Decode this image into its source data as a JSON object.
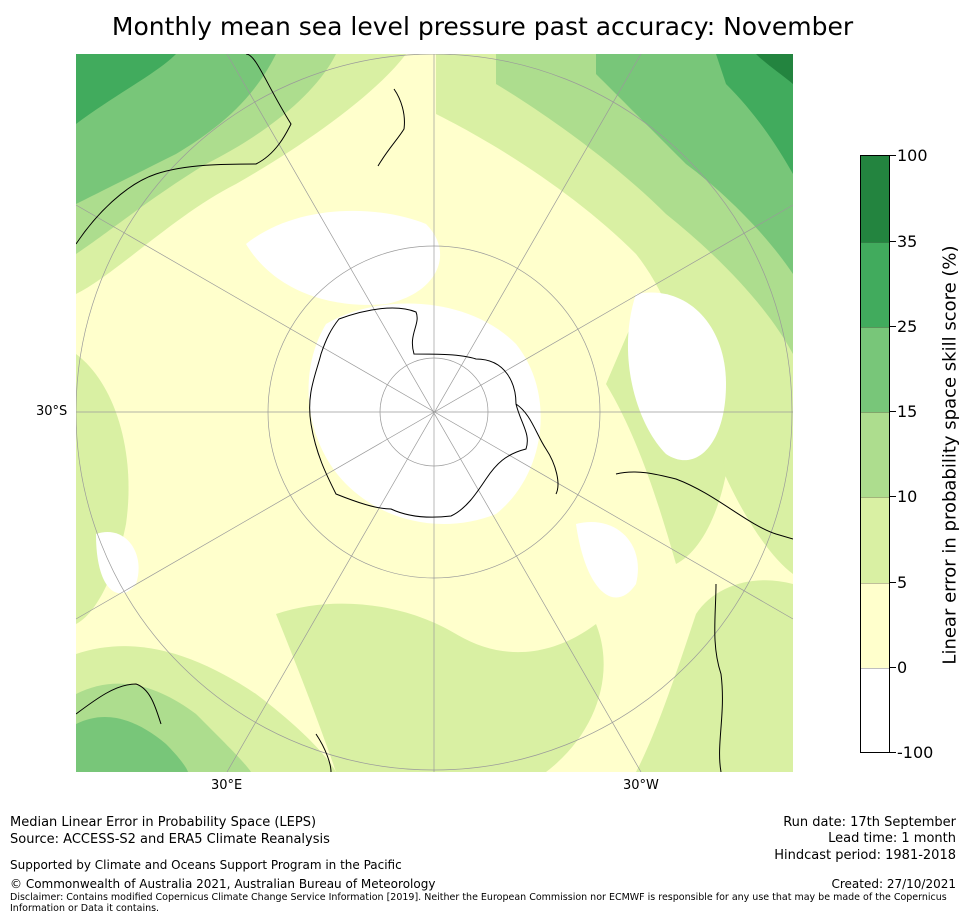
{
  "title": "Monthly mean sea level pressure past accuracy: November",
  "map": {
    "lat_label": "30°S",
    "lon_labels": [
      "30°E",
      "30°W"
    ],
    "colors": {
      "land_border": "#000000",
      "grid": "#9a9a9a"
    }
  },
  "colorbar": {
    "title": "Linear error in probability space skill score (%)",
    "ticks": [
      "100",
      "35",
      "25",
      "15",
      "10",
      "5",
      "0",
      "-100"
    ],
    "colors": [
      "#23843f",
      "#41ab5d",
      "#78c679",
      "#addd8e",
      "#d9f0a3",
      "#ffffcc",
      "#ffffff"
    ]
  },
  "footer": {
    "left_line1": "Median Linear Error in Probability Space (LEPS)",
    "left_line2": "Source: ACCESS-S2 and ERA5 Climate Reanalysis",
    "support": "Supported by Climate and Oceans Support Program in the Pacific",
    "copyright": "© Commonwealth of Australia 2021, Australian Bureau of Meteorology",
    "disclaimer": "Disclaimer: Contains modified Copernicus Climate Change Service Information [2019]. Neither the European Commission nor ECMWF is responsible for any use that may be made of the Copernicus Information or Data it contains.",
    "run_date": "Run date: 17th September",
    "lead_time": "Lead time: 1 month",
    "hindcast": "Hindcast period: 1981-2018",
    "created": "Created: 27/10/2021"
  }
}
